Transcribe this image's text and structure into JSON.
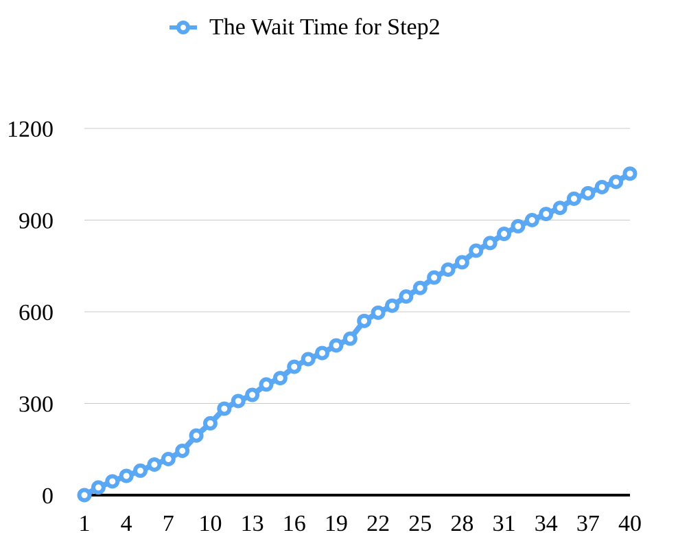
{
  "chart_data": {
    "type": "line",
    "legend_position": "top-center",
    "grid": true,
    "colors": {
      "series": "#5aa8f4",
      "marker_fill": "#ffffff",
      "grid": "#c8c8c8",
      "axis": "#000000"
    },
    "x": [
      1,
      2,
      3,
      4,
      5,
      6,
      7,
      8,
      9,
      10,
      11,
      12,
      13,
      14,
      15,
      16,
      17,
      18,
      19,
      20,
      21,
      22,
      23,
      24,
      25,
      26,
      27,
      28,
      29,
      30,
      31,
      32,
      33,
      34,
      35,
      36,
      37,
      38,
      39,
      40
    ],
    "x_tick_labels": [
      "1",
      "4",
      "7",
      "10",
      "13",
      "16",
      "19",
      "22",
      "25",
      "28",
      "31",
      "34",
      "37",
      "40"
    ],
    "x_tick_values": [
      1,
      4,
      7,
      10,
      13,
      16,
      19,
      22,
      25,
      28,
      31,
      34,
      37,
      40
    ],
    "y_tick_labels": [
      "0",
      "300",
      "600",
      "900",
      "1200"
    ],
    "y_tick_values": [
      0,
      300,
      600,
      900,
      1200
    ],
    "ylim": [
      0,
      1200
    ],
    "series": [
      {
        "name": "The Wait Time for Step2",
        "values": [
          0,
          25,
          45,
          63,
          80,
          100,
          118,
          145,
          195,
          235,
          283,
          308,
          328,
          362,
          383,
          420,
          445,
          465,
          490,
          512,
          570,
          597,
          620,
          650,
          678,
          712,
          738,
          762,
          800,
          825,
          855,
          880,
          900,
          920,
          940,
          970,
          988,
          1008,
          1025,
          1052
        ]
      }
    ]
  }
}
